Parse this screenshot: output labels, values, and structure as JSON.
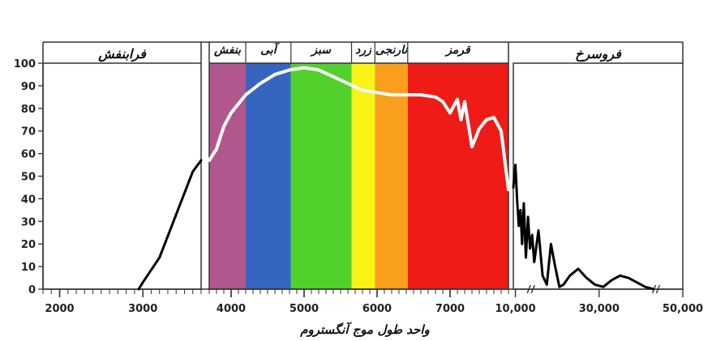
{
  "chart_data": {
    "type": "line",
    "title": "",
    "xlabel": "واحد طول موج آنگستروم",
    "ylabel": "",
    "ylim": [
      0,
      100
    ],
    "yticks": [
      "0",
      "10",
      "20",
      "30",
      "40",
      "50",
      "60",
      "70",
      "80",
      "90",
      "100"
    ],
    "x_axis_segments": [
      {
        "name": "uv",
        "range": [
          1800,
          3700
        ]
      },
      {
        "name": "visible",
        "range": [
          3700,
          7800
        ]
      },
      {
        "name": "ir",
        "range": [
          9500,
          50000
        ]
      }
    ],
    "xticks": [
      {
        "label": "2000",
        "value": 2000,
        "segment": "uv"
      },
      {
        "label": "3000",
        "value": 3000,
        "segment": "uv"
      },
      {
        "label": "4000",
        "value": 4000,
        "segment": "visible"
      },
      {
        "label": "5000",
        "value": 5000,
        "segment": "visible"
      },
      {
        "label": "6000",
        "value": 6000,
        "segment": "visible"
      },
      {
        "label": "7000",
        "value": 7000,
        "segment": "visible"
      },
      {
        "label": "10,000",
        "value": 10000,
        "segment": "ir"
      },
      {
        "label": "30,000",
        "value": 30000,
        "segment": "ir"
      },
      {
        "label": "50,000",
        "value": 50000,
        "segment": "ir"
      }
    ],
    "regions": [
      {
        "label": "فرابنفش",
        "segment": "uv"
      },
      {
        "label": "فروسرخ",
        "segment": "ir"
      }
    ],
    "bands": [
      {
        "label": "بنفش",
        "from": 3700,
        "to": 4200,
        "color": "#b2568e"
      },
      {
        "label": "آبی",
        "from": 4200,
        "to": 4820,
        "color": "#3565bf"
      },
      {
        "label": "سبز",
        "from": 4820,
        "to": 5650,
        "color": "#52d12c"
      },
      {
        "label": "زرد",
        "from": 5650,
        "to": 5970,
        "color": "#f9f318"
      },
      {
        "label": "نارنجی",
        "from": 5970,
        "to": 6420,
        "color": "#f99f1b"
      },
      {
        "label": "قرمز",
        "from": 6420,
        "to": 7800,
        "color": "#ef1b16"
      }
    ],
    "series": [
      {
        "segment": "uv",
        "color": "#000000",
        "x": [
          2950,
          3000,
          3200,
          3400,
          3600,
          3700
        ],
        "y": [
          0,
          3,
          14,
          33,
          52,
          57
        ]
      },
      {
        "segment": "visible",
        "color": "#ffffff",
        "x": [
          3700,
          3800,
          3900,
          4000,
          4200,
          4400,
          4600,
          4800,
          5000,
          5200,
          5400,
          5600,
          5800,
          6000,
          6200,
          6400,
          6600,
          6800,
          6900,
          7000,
          7100,
          7150,
          7200,
          7300,
          7400,
          7500,
          7600,
          7700,
          7800
        ],
        "y": [
          57,
          62,
          72,
          78,
          86,
          91,
          95,
          97,
          98,
          97,
          94,
          91,
          88,
          87,
          86,
          86,
          86,
          85,
          83,
          78,
          84,
          75,
          83,
          63,
          71,
          75,
          76,
          70,
          44
        ]
      },
      {
        "segment": "ir",
        "color": "#000000",
        "x": [
          9500,
          10000,
          10400,
          10800,
          11200,
          11600,
          12000,
          12500,
          13000,
          13500,
          14000,
          14500,
          15500,
          16500,
          17500,
          18500,
          19500,
          20500,
          21500,
          23000,
          25000,
          27000,
          29000,
          31000,
          33000,
          35000,
          37000,
          39000,
          41000,
          43000
        ],
        "y": [
          45,
          55,
          40,
          28,
          35,
          20,
          38,
          14,
          32,
          18,
          24,
          12,
          26,
          6,
          2,
          20,
          10,
          1,
          2,
          6,
          9,
          5,
          2,
          1,
          4,
          6,
          5,
          3,
          1,
          0
        ]
      }
    ],
    "legend": "none",
    "grid": false
  }
}
